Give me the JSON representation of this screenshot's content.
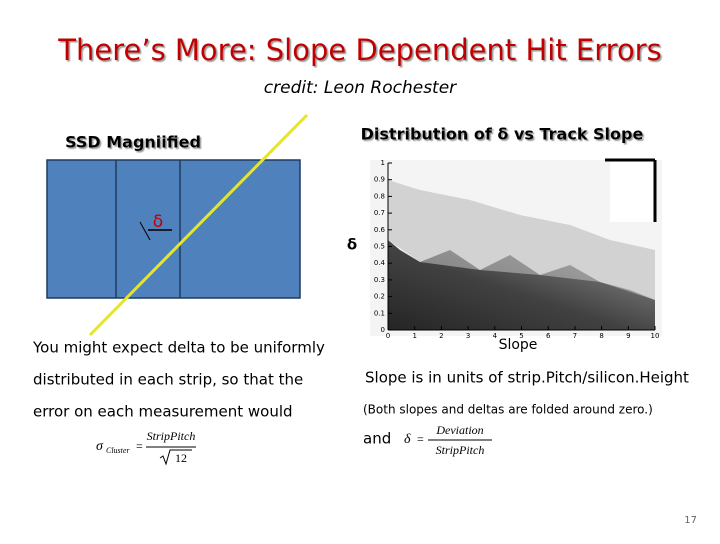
{
  "title": "There’s More: Slope Dependent Hit Errors",
  "credit": "credit: Leon Rochester",
  "diagram": {
    "label": "SSD Magniified",
    "delta": "δ"
  },
  "plot": {
    "title": "Distribution of δ vs Track Slope",
    "y_label": "δ",
    "x_label": "Slope",
    "yticks": [
      0,
      0.1,
      0.2,
      0.3,
      0.4,
      0.5,
      0.6,
      0.7,
      0.8,
      0.9,
      1
    ],
    "xticks": [
      0,
      1,
      2,
      3,
      4,
      5,
      6,
      7,
      8,
      9,
      10
    ]
  },
  "left_text": [
    "You might expect delta to be uniformly",
    "distributed in each strip, so that the",
    "error on each measurement would"
  ],
  "left_formula": {
    "lhs": "σ",
    "sub": "Cluster",
    "eq": "=",
    "num": "StripPitch",
    "den": "12"
  },
  "right_text": [
    "Slope is in units of strip.Pitch/silicon.Height",
    "(Both slopes and deltas are folded around zero.)",
    "and"
  ],
  "right_formula": {
    "lhs": "δ",
    "eq": "=",
    "num": "Deviation",
    "den": "StripPitch"
  },
  "page_number": "17"
}
